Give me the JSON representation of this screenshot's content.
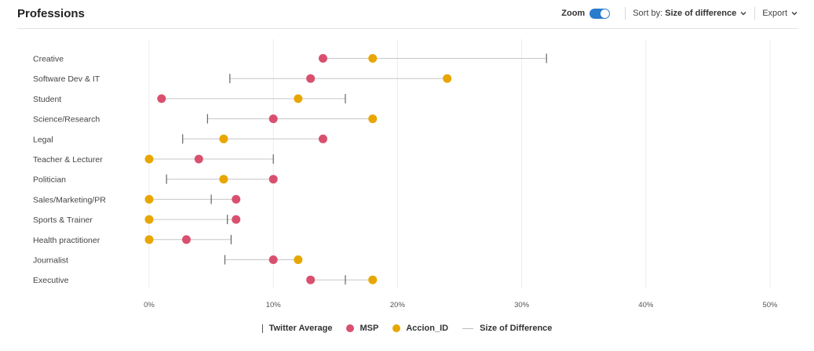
{
  "header": {
    "title": "Professions",
    "zoom_label": "Zoom",
    "sort_prefix": "Sort by:",
    "sort_value": "Size of difference",
    "export_label": "Export",
    "toggle_color": "#2a7ccd"
  },
  "legend": {
    "twitter": "Twitter Average",
    "msp": "MSP",
    "accion": "Accion_ID",
    "diff": "Size of Difference"
  },
  "colors": {
    "msp": "#d9506f",
    "accion": "#e8a600",
    "twitter": "#666666",
    "line": "#c6c6c6"
  },
  "chart_data": {
    "type": "dumbbell",
    "xlim": [
      0,
      50
    ],
    "x_ticks": [
      0,
      10,
      20,
      30,
      40,
      50
    ],
    "x_tick_labels": [
      "0%",
      "10%",
      "20%",
      "30%",
      "40%",
      "50%"
    ],
    "categories": [
      "Creative",
      "Software Dev & IT",
      "Student",
      "Science/Research",
      "Legal",
      "Teacher & Lecturer",
      "Politician",
      "Sales/Marketing/PR",
      "Sports & Trainer",
      "Health practitioner",
      "Journalist",
      "Executive"
    ],
    "series": [
      {
        "name": "Twitter Average",
        "values": [
          32,
          6.5,
          15.8,
          4.7,
          2.7,
          10,
          1.4,
          5,
          6.3,
          6.6,
          6.1,
          15.8
        ]
      },
      {
        "name": "MSP",
        "values": [
          14,
          13,
          1,
          10,
          14,
          4,
          10,
          7,
          7,
          3,
          10,
          13
        ]
      },
      {
        "name": "Accion_ID",
        "values": [
          18,
          24,
          12,
          18,
          6,
          0,
          6,
          0,
          0,
          0,
          12,
          18
        ]
      }
    ]
  }
}
